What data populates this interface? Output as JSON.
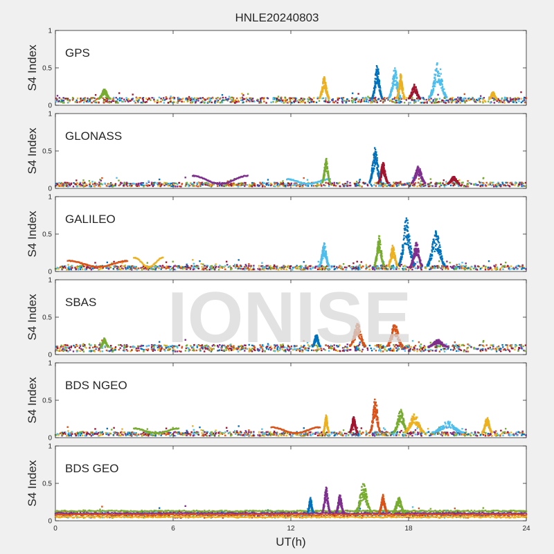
{
  "figure": {
    "title": "HNLE20240803",
    "watermark": "IONISE",
    "xlabel": "UT(h)",
    "ylabel": "S4 Index"
  },
  "chart_data": {
    "type": "scatter",
    "xlim": [
      0,
      24
    ],
    "x_ticks": [
      "0",
      "6",
      "12",
      "18",
      "24"
    ],
    "y_ticks": [
      "0",
      "0.5",
      "1"
    ],
    "ylim": [
      0,
      1
    ],
    "grid": false,
    "colors": [
      "#0072BD",
      "#D95319",
      "#EDB120",
      "#7E2F8E",
      "#77AC30",
      "#4DBEEE",
      "#A2142F"
    ],
    "panels": [
      {
        "name": "GPS",
        "baseline": 0.08,
        "events": [
          {
            "x": 2.5,
            "peak": 0.22,
            "width": 0.3,
            "color": 4
          },
          {
            "x": 13.7,
            "peak": 0.38,
            "width": 0.25,
            "color": 2
          },
          {
            "x": 16.4,
            "peak": 0.55,
            "width": 0.25,
            "color": 0
          },
          {
            "x": 17.3,
            "peak": 0.5,
            "width": 0.3,
            "color": 5
          },
          {
            "x": 17.6,
            "peak": 0.42,
            "width": 0.2,
            "color": 2
          },
          {
            "x": 18.3,
            "peak": 0.28,
            "width": 0.3,
            "color": 6
          },
          {
            "x": 19.5,
            "peak": 0.58,
            "width": 0.45,
            "color": 5
          },
          {
            "x": 22.3,
            "peak": 0.18,
            "width": 0.2,
            "color": 2
          }
        ]
      },
      {
        "name": "GLONASS",
        "baseline": 0.06,
        "arcs": [
          {
            "x0": 7.0,
            "x1": 9.8,
            "level": 0.18,
            "color": 3
          },
          {
            "x0": 11.8,
            "x1": 14.0,
            "level": 0.13,
            "color": 5
          }
        ],
        "events": [
          {
            "x": 13.8,
            "peak": 0.42,
            "width": 0.2,
            "color": 4
          },
          {
            "x": 16.3,
            "peak": 0.55,
            "width": 0.3,
            "color": 0
          },
          {
            "x": 16.7,
            "peak": 0.35,
            "width": 0.25,
            "color": 6
          },
          {
            "x": 18.5,
            "peak": 0.3,
            "width": 0.35,
            "color": 3
          },
          {
            "x": 20.3,
            "peak": 0.16,
            "width": 0.3,
            "color": 6
          }
        ]
      },
      {
        "name": "GALILEO",
        "baseline": 0.06,
        "arcs": [
          {
            "x0": 0.7,
            "x1": 3.7,
            "level": 0.15,
            "color": 1
          },
          {
            "x0": 4.0,
            "x1": 5.5,
            "level": 0.2,
            "color": 2
          }
        ],
        "events": [
          {
            "x": 13.7,
            "peak": 0.38,
            "width": 0.25,
            "color": 5
          },
          {
            "x": 16.5,
            "peak": 0.48,
            "width": 0.25,
            "color": 4
          },
          {
            "x": 17.2,
            "peak": 0.35,
            "width": 0.25,
            "color": 2
          },
          {
            "x": 17.9,
            "peak": 0.72,
            "width": 0.4,
            "color": 0
          },
          {
            "x": 18.4,
            "peak": 0.4,
            "width": 0.3,
            "color": 3
          },
          {
            "x": 19.4,
            "peak": 0.55,
            "width": 0.45,
            "color": 0
          }
        ]
      },
      {
        "name": "SBAS",
        "baseline": 0.1,
        "events": [
          {
            "x": 2.5,
            "peak": 0.22,
            "width": 0.2,
            "color": 4
          },
          {
            "x": 13.3,
            "peak": 0.28,
            "width": 0.2,
            "color": 0
          },
          {
            "x": 15.4,
            "peak": 0.42,
            "width": 0.4,
            "color": 1
          },
          {
            "x": 17.3,
            "peak": 0.42,
            "width": 0.4,
            "color": 1
          },
          {
            "x": 19.5,
            "peak": 0.2,
            "width": 0.5,
            "color": 3
          }
        ]
      },
      {
        "name": "BDS NGEO",
        "baseline": 0.06,
        "arcs": [
          {
            "x0": 4.0,
            "x1": 6.3,
            "level": 0.13,
            "color": 4
          },
          {
            "x0": 11.0,
            "x1": 13.5,
            "level": 0.15,
            "color": 1
          }
        ],
        "events": [
          {
            "x": 13.8,
            "peak": 0.3,
            "width": 0.15,
            "color": 2
          },
          {
            "x": 15.2,
            "peak": 0.28,
            "width": 0.2,
            "color": 6
          },
          {
            "x": 16.3,
            "peak": 0.52,
            "width": 0.25,
            "color": 1
          },
          {
            "x": 17.6,
            "peak": 0.38,
            "width": 0.35,
            "color": 4
          },
          {
            "x": 18.3,
            "peak": 0.32,
            "width": 0.5,
            "color": 2
          },
          {
            "x": 20.0,
            "peak": 0.22,
            "width": 0.8,
            "color": 5
          },
          {
            "x": 22.0,
            "peak": 0.28,
            "width": 0.25,
            "color": 2
          }
        ]
      },
      {
        "name": "BDS GEO",
        "baseline": 0.1,
        "flat_levels": [
          {
            "level": 0.13,
            "color": 4
          },
          {
            "level": 0.1,
            "color": 3
          },
          {
            "level": 0.08,
            "color": 1
          },
          {
            "level": 0.05,
            "color": 2
          }
        ],
        "events": [
          {
            "x": 13.0,
            "peak": 0.32,
            "width": 0.15,
            "color": 0
          },
          {
            "x": 13.8,
            "peak": 0.45,
            "width": 0.2,
            "color": 3
          },
          {
            "x": 14.5,
            "peak": 0.35,
            "width": 0.2,
            "color": 3
          },
          {
            "x": 15.7,
            "peak": 0.5,
            "width": 0.4,
            "color": 4
          },
          {
            "x": 16.7,
            "peak": 0.35,
            "width": 0.2,
            "color": 1
          },
          {
            "x": 17.5,
            "peak": 0.32,
            "width": 0.3,
            "color": 4
          }
        ]
      }
    ]
  }
}
